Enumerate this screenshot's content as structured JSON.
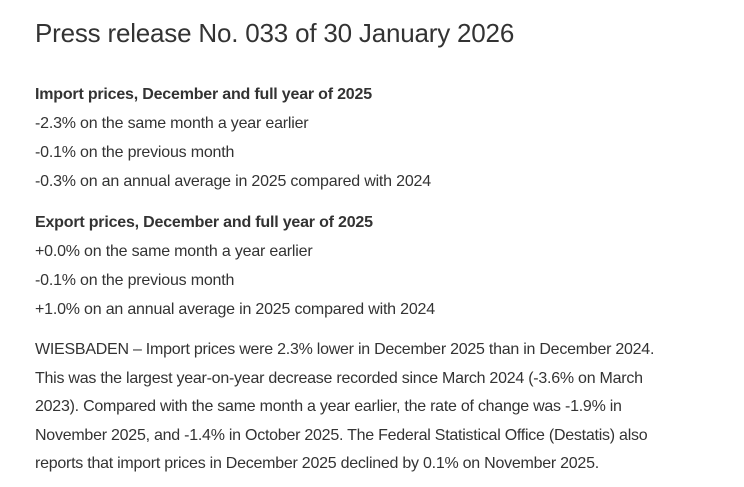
{
  "page": {
    "title": "Press release No. 033 of 30 January 2026"
  },
  "import_section": {
    "heading": "Import prices, December and full year of 2025",
    "lines": [
      "-2.3% on the same month a year earlier",
      "-0.1% on the previous month",
      "-0.3% on an annual average in 2025 compared with 2024"
    ]
  },
  "export_section": {
    "heading": "Export prices, December and full year of 2025",
    "lines": [
      "+0.0% on the same month a year earlier",
      "-0.1% on the previous month",
      "+1.0% on an annual average in 2025 compared with 2024"
    ]
  },
  "paragraph": {
    "lines": [
      "WIESBADEN – Import prices were 2.3% lower in December 2025 than in December 2024.",
      "This was the largest year-on-year decrease recorded since March 2024 (-3.6% on March",
      "2023). Compared with the same month a year earlier, the rate of change was -1.9% in",
      "November 2025, and -1.4% in October 2025. The Federal Statistical Office (Destatis) also",
      "reports that import prices in December 2025 declined by 0.1% on November 2025."
    ]
  },
  "colors": {
    "text": "#333333",
    "background": "#ffffff"
  }
}
